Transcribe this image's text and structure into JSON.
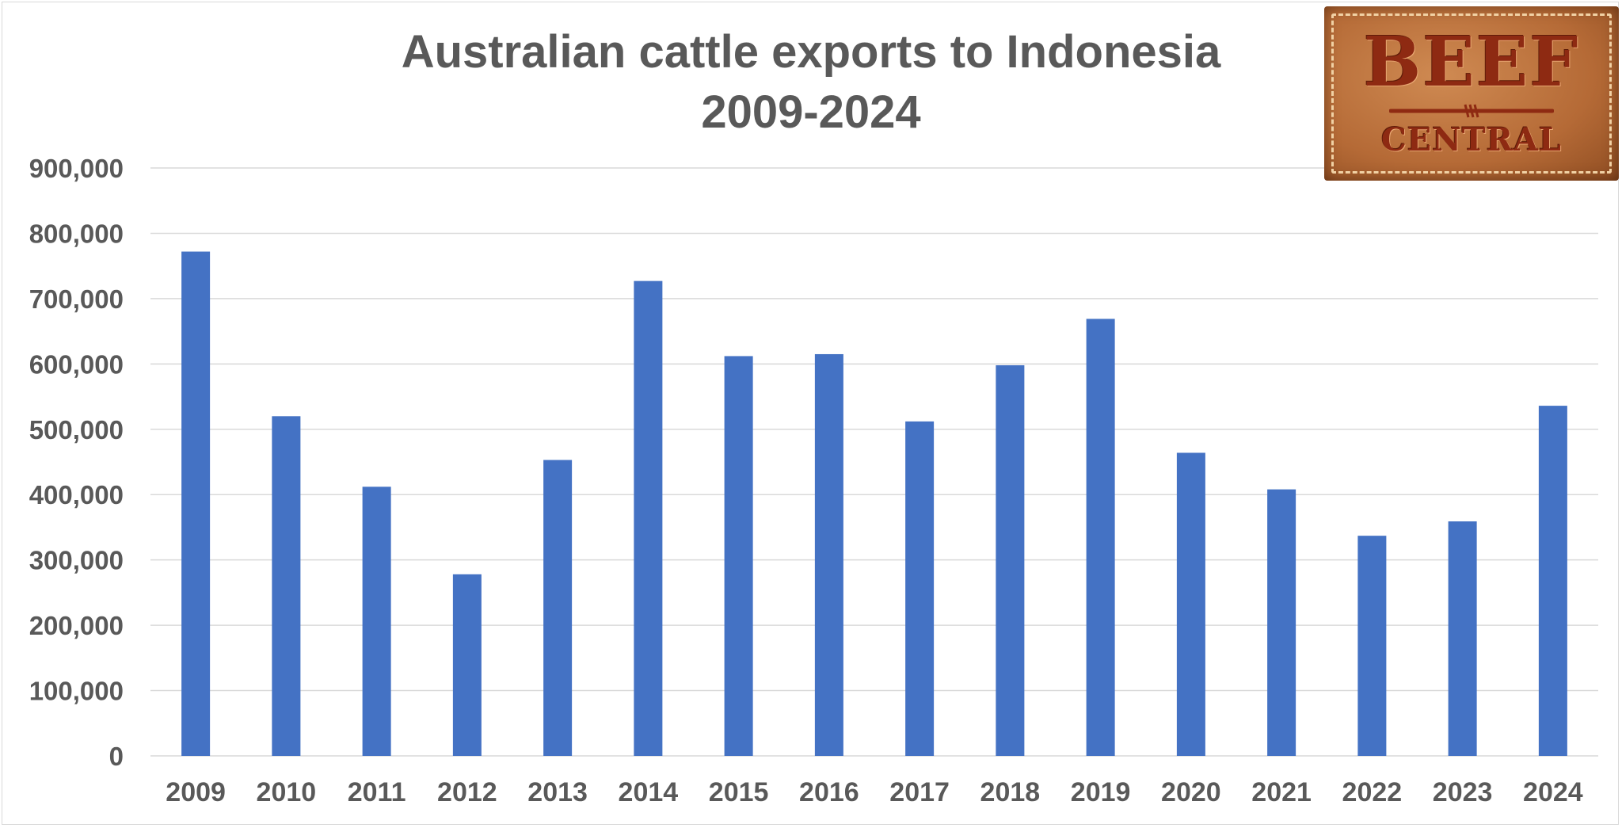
{
  "chart_data": {
    "type": "bar",
    "title_lines": [
      "Australian cattle exports to Indonesia",
      "2009-2024"
    ],
    "categories": [
      "2009",
      "2010",
      "2011",
      "2012",
      "2013",
      "2014",
      "2015",
      "2016",
      "2017",
      "2018",
      "2019",
      "2020",
      "2021",
      "2022",
      "2023",
      "2024"
    ],
    "series": [
      {
        "values": [
          772000,
          520000,
          412000,
          278000,
          453000,
          727000,
          612000,
          615000,
          512000,
          598000,
          669000,
          464000,
          408000,
          337000,
          359000,
          536000
        ],
        "color": "#4472c4"
      }
    ],
    "xlabel": "",
    "ylabel": "",
    "ylim": [
      0,
      900000
    ],
    "yticks": [
      0,
      100000,
      200000,
      300000,
      400000,
      500000,
      600000,
      700000,
      800000,
      900000
    ],
    "ytick_labels": [
      "0",
      "100,000",
      "200,000",
      "300,000",
      "400,000",
      "500,000",
      "600,000",
      "700,000",
      "800,000",
      "900,000"
    ],
    "grid": true,
    "legend": "none",
    "colors": {
      "bar": "#4472c4",
      "gridline": "#d9d9d9",
      "text": "#595959"
    }
  },
  "logo": {
    "line1": "BEEF",
    "line2": "CENTRAL",
    "icon": "barbed-wire-icon"
  }
}
